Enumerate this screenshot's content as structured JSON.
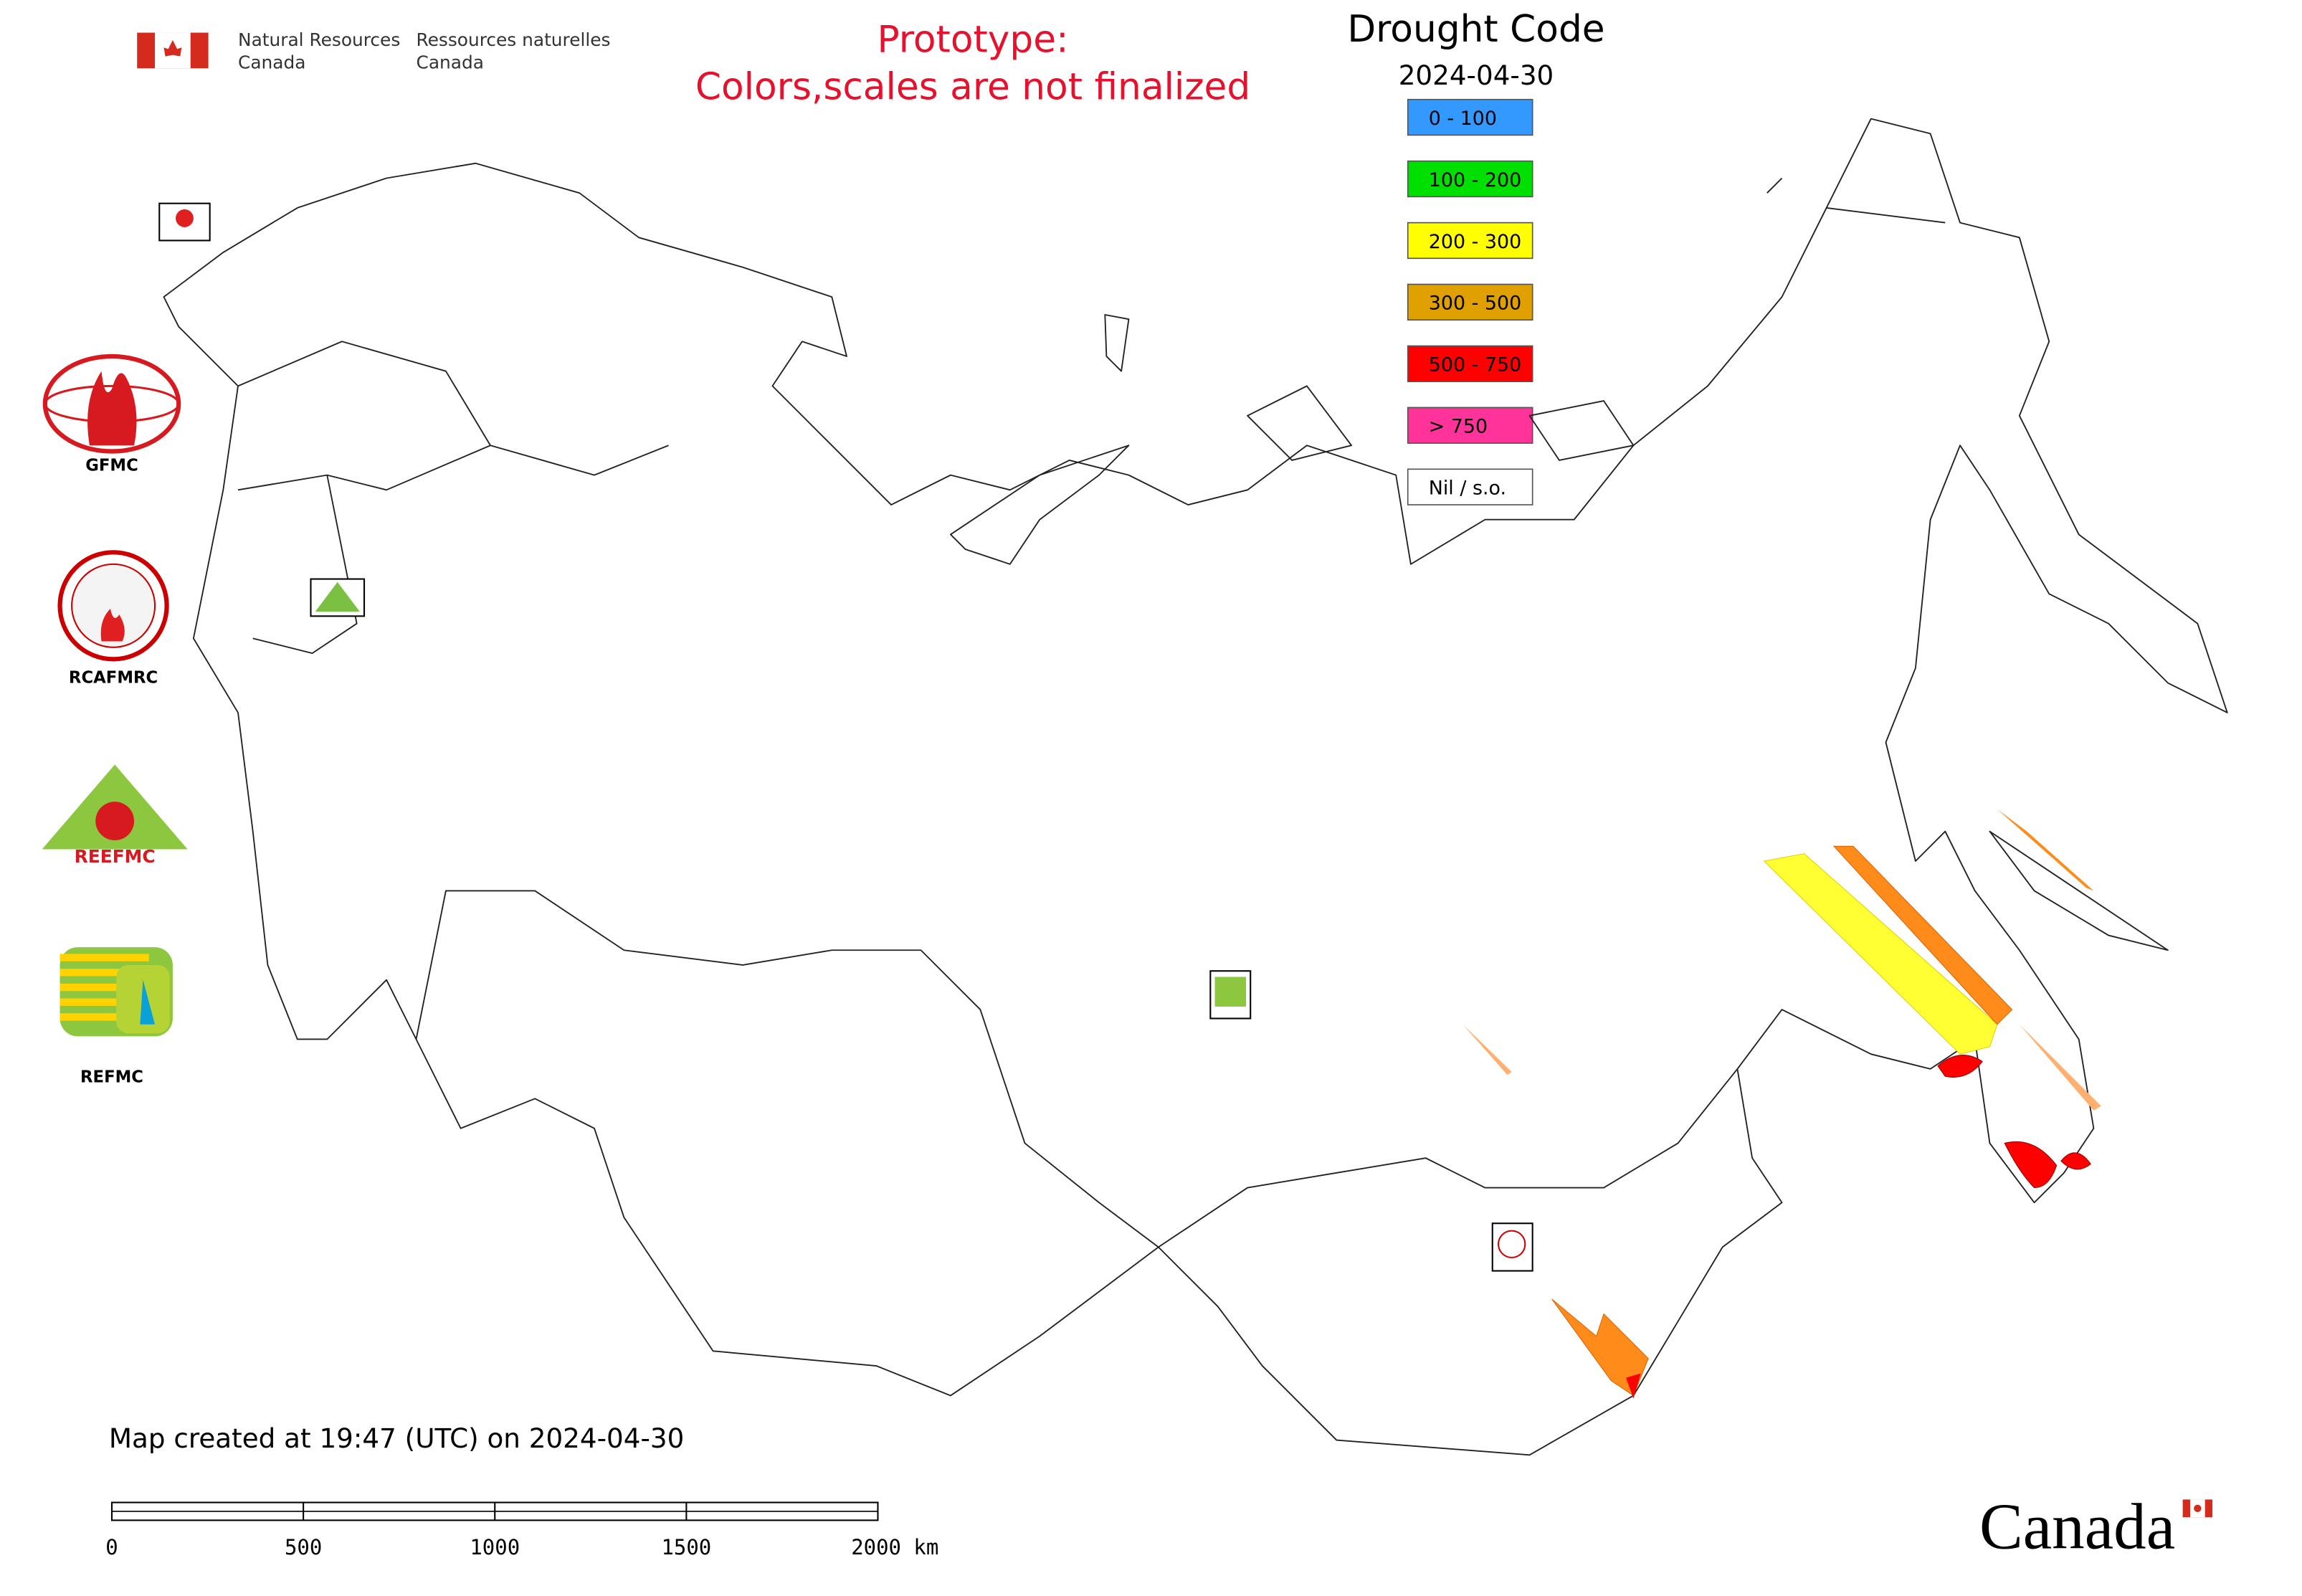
{
  "header": {
    "department_en": [
      "Natural Resources",
      "Canada"
    ],
    "department_fr": [
      "Ressources naturelles",
      "Canada"
    ]
  },
  "notice": [
    "Prototype:",
    "Colors,scales are not finalized"
  ],
  "legend": {
    "title": "Drought Code",
    "date": "2024-04-30",
    "items": [
      {
        "label": "0 - 100",
        "color": "#3399ff"
      },
      {
        "label": "100 - 200",
        "color": "#00e000"
      },
      {
        "label": "200 - 300",
        "color": "#ffff00"
      },
      {
        "label": "300 - 500",
        "color": "#e0a000"
      },
      {
        "label": "500 - 750",
        "color": "#ff0000"
      },
      {
        "label": "> 750",
        "color": "#ff3399"
      },
      {
        "label": "Nil / s.o.",
        "color": "#ffffff"
      }
    ]
  },
  "logos": [
    "GFMC",
    "RCAFMRC",
    "REEFMC",
    "REFMC"
  ],
  "footer": {
    "created": "Map created at 19:47 (UTC) on 2024-04-30",
    "scale_labels": [
      "0",
      "500",
      "1000",
      "1500",
      "2000 km"
    ],
    "wordmark": "Canada"
  }
}
